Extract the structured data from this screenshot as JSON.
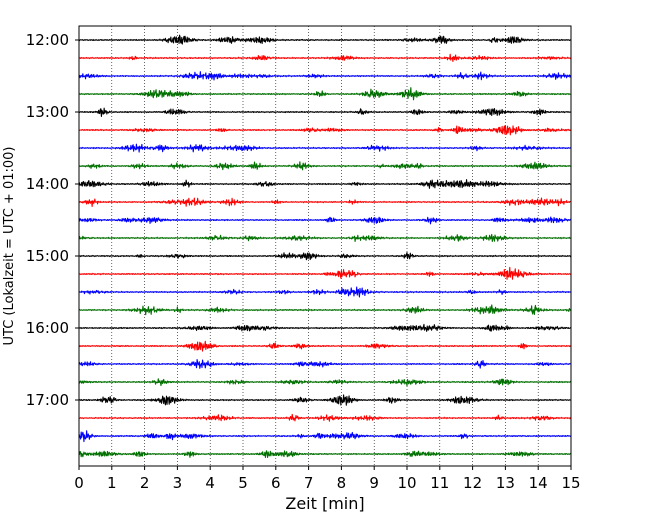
{
  "chart_data": {
    "type": "line",
    "subtype": "seismogram-helicorder",
    "xlabel": "Zeit  [min]",
    "ylabel": "UTC (Lokalzeit = UTC + 01:00)",
    "xlim": [
      0,
      15
    ],
    "x_ticks": [
      "0",
      "1",
      "2",
      "3",
      "4",
      "5",
      "6",
      "7",
      "8",
      "9",
      "10",
      "11",
      "12",
      "13",
      "14",
      "15"
    ],
    "y_ticks": [
      {
        "time": "12:00",
        "label": "12:00"
      },
      {
        "time": "13:00",
        "label": "13:00"
      },
      {
        "time": "14:00",
        "label": "14:00"
      },
      {
        "time": "15:00",
        "label": "15:00"
      },
      {
        "time": "16:00",
        "label": "16:00"
      },
      {
        "time": "17:00",
        "label": "17:00"
      }
    ],
    "trace_interval_minutes": 15,
    "grid": "vertical-dotted",
    "trace_colors": [
      "#000000",
      "#ff0000",
      "#0000ff",
      "#007000"
    ],
    "series": [
      {
        "start": "12:00",
        "color": "#000000"
      },
      {
        "start": "12:15",
        "color": "#ff0000"
      },
      {
        "start": "12:30",
        "color": "#0000ff"
      },
      {
        "start": "12:45",
        "color": "#007000"
      },
      {
        "start": "13:00",
        "color": "#000000"
      },
      {
        "start": "13:15",
        "color": "#ff0000"
      },
      {
        "start": "13:30",
        "color": "#0000ff"
      },
      {
        "start": "13:45",
        "color": "#007000"
      },
      {
        "start": "14:00",
        "color": "#000000"
      },
      {
        "start": "14:15",
        "color": "#ff0000"
      },
      {
        "start": "14:30",
        "color": "#0000ff"
      },
      {
        "start": "14:45",
        "color": "#007000"
      },
      {
        "start": "15:00",
        "color": "#000000"
      },
      {
        "start": "15:15",
        "color": "#ff0000"
      },
      {
        "start": "15:30",
        "color": "#0000ff"
      },
      {
        "start": "15:45",
        "color": "#007000"
      },
      {
        "start": "16:00",
        "color": "#000000"
      },
      {
        "start": "16:15",
        "color": "#ff0000"
      },
      {
        "start": "16:30",
        "color": "#0000ff"
      },
      {
        "start": "16:45",
        "color": "#007000"
      },
      {
        "start": "17:00",
        "color": "#000000"
      },
      {
        "start": "17:15",
        "color": "#ff0000"
      },
      {
        "start": "17:30",
        "color": "#0000ff"
      },
      {
        "start": "17:45",
        "color": "#007000"
      }
    ]
  }
}
